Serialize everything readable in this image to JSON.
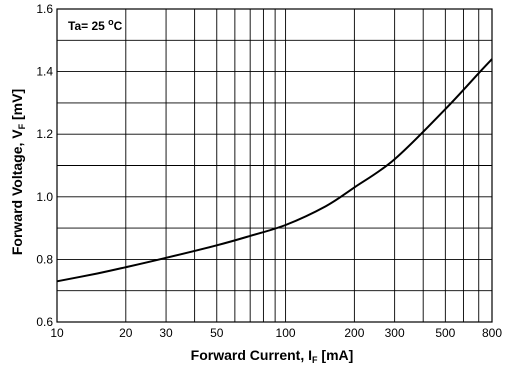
{
  "chart_data": {
    "type": "line",
    "x_scale": "log",
    "y_scale": "linear",
    "xlim": [
      10,
      800
    ],
    "ylim": [
      0.6,
      1.6
    ],
    "grid": true,
    "x_ticks": [
      10,
      20,
      30,
      50,
      100,
      200,
      300,
      500,
      800
    ],
    "x_tick_labels": [
      "10",
      "20",
      "30",
      "50",
      "100",
      "200",
      "300",
      "500",
      "800"
    ],
    "x_minor_grid": [
      40,
      60,
      70,
      80,
      90,
      400,
      600,
      700
    ],
    "y_ticks": [
      0.6,
      0.8,
      1.0,
      1.2,
      1.4,
      1.6
    ],
    "y_tick_labels": [
      "0.6",
      "0.8",
      "1.0",
      "1.2",
      "1.4",
      "1.6"
    ],
    "y_minor_grid": [
      0.7,
      0.9,
      1.1,
      1.3,
      1.5
    ],
    "xlabel": {
      "main": "Forward Current, I",
      "sub": "F",
      "unit": " [mA]"
    },
    "ylabel": {
      "main": "Forward Voltage, V",
      "sub": "F",
      "unit": " [mV]"
    },
    "annotation": {
      "text": "Ta= 25 ",
      "sup": "o",
      "after": "C"
    },
    "series": [
      {
        "x": [
          10,
          15,
          20,
          30,
          50,
          70,
          100,
          150,
          200,
          300,
          500,
          700,
          800
        ],
        "y": [
          0.73,
          0.755,
          0.775,
          0.805,
          0.845,
          0.875,
          0.91,
          0.97,
          1.03,
          1.12,
          1.28,
          1.395,
          1.44
        ]
      }
    ],
    "colors": {
      "line": "#000000",
      "grid": "#000000",
      "background": "#ffffff"
    }
  }
}
